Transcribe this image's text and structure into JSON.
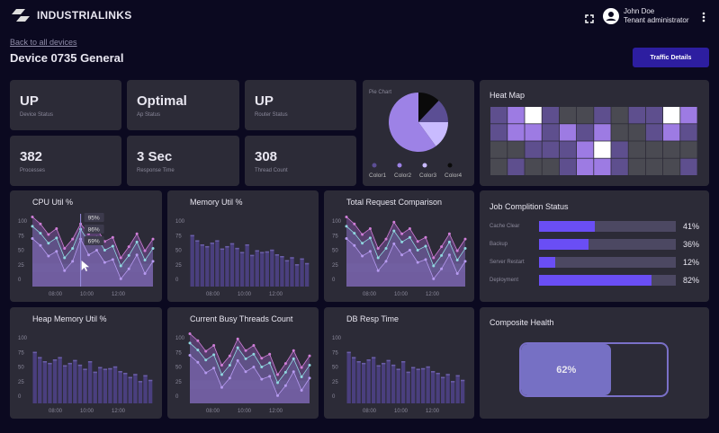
{
  "header": {
    "brand": "INDUSTRIALINKS",
    "user_name": "John Doe",
    "user_role": "Tenant administrator",
    "icons": [
      "fullscreen-icon",
      "account-circle-icon",
      "more-vert-icon"
    ]
  },
  "page": {
    "back_link": "Back to all devices",
    "title": "Device 0735 General",
    "traffic_button": "Traffic Details"
  },
  "stats": [
    {
      "value": "UP",
      "label": "Device Status"
    },
    {
      "value": "Optimal",
      "label": "Ap Status"
    },
    {
      "value": "UP",
      "label": "Router Status"
    },
    {
      "value": "382",
      "label": "Processes"
    },
    {
      "value": "3 Sec",
      "label": "Response Time"
    },
    {
      "value": "308",
      "label": "Thread Count"
    }
  ],
  "colors": {
    "accent": "#6a4ef5",
    "button": "#2d1ea0",
    "card": "#2c2b37",
    "background": "#0b0920"
  },
  "chart_data": [
    {
      "id": "pie",
      "type": "pie",
      "title": "Pie Chart",
      "labels": [
        "Color1",
        "Color2",
        "Color3",
        "Color4"
      ],
      "values": [
        13,
        60,
        15,
        12
      ],
      "colors": [
        "#5b4e94",
        "#9d82e6",
        "#c9bbff",
        "#0a0a0a"
      ]
    },
    {
      "id": "heat",
      "type": "heatmap",
      "title": "Heat Map",
      "values": [
        [
          1,
          2,
          3,
          1,
          0,
          0,
          1,
          0,
          1,
          1,
          3,
          2
        ],
        [
          1,
          2,
          2,
          1,
          2,
          1,
          2,
          0,
          0,
          1,
          2,
          1
        ],
        [
          0,
          0,
          1,
          1,
          1,
          2,
          3,
          1,
          0,
          0,
          0,
          0
        ],
        [
          0,
          1,
          0,
          0,
          1,
          2,
          2,
          1,
          0,
          0,
          0,
          1
        ]
      ],
      "colors": [
        "#4a4a52",
        "#5e4f8e",
        "#9d7be3",
        "#ffffff"
      ]
    },
    {
      "id": "cpu",
      "type": "area",
      "title": "CPU Util %",
      "ylim": [
        0,
        100
      ],
      "yticks": [
        0,
        25,
        50,
        75,
        100
      ],
      "xticks": [
        "08:00",
        "10:00",
        "12:00"
      ],
      "tooltip": [
        "95%",
        "86%",
        "69%"
      ],
      "tooltip_index": 6,
      "series": [
        {
          "values": [
            107,
            95,
            77,
            87,
            53,
            69,
            95,
            78,
            87,
            65,
            72,
            37,
            56,
            78,
            49,
            69
          ]
        },
        {
          "values": [
            91,
            79,
            62,
            71,
            37,
            53,
            86,
            64,
            72,
            50,
            57,
            23,
            41,
            64,
            33,
            53
          ]
        },
        {
          "values": [
            70,
            58,
            40,
            48,
            15,
            31,
            69,
            42,
            50,
            29,
            34,
            1,
            18,
            42,
            10,
            31
          ]
        }
      ]
    },
    {
      "id": "mem",
      "type": "bar",
      "title": "Memory Util %",
      "ylim": [
        0,
        100
      ],
      "yticks": [
        0,
        25,
        50,
        75,
        100
      ],
      "xticks": [
        "08:00",
        "10:00",
        "12:00"
      ],
      "values": [
        76,
        67,
        60,
        57,
        63,
        67,
        53,
        57,
        62,
        54,
        47,
        60,
        42,
        50,
        47,
        48,
        51,
        43,
        40,
        33,
        38,
        26,
        36,
        28
      ]
    },
    {
      "id": "req",
      "type": "area",
      "title": "Total Request Comparison",
      "ylim": [
        0,
        100
      ],
      "yticks": [
        0,
        25,
        50,
        75,
        100
      ],
      "xticks": [
        "08:00",
        "10:00",
        "12:00"
      ],
      "series": [
        {
          "values": [
            107,
            95,
            77,
            87,
            53,
            69,
            98,
            78,
            87,
            65,
            72,
            37,
            56,
            78,
            49,
            69
          ]
        },
        {
          "values": [
            91,
            79,
            62,
            71,
            37,
            53,
            83,
            64,
            72,
            50,
            57,
            23,
            41,
            64,
            33,
            53
          ]
        },
        {
          "values": [
            70,
            58,
            40,
            48,
            15,
            31,
            61,
            42,
            50,
            29,
            34,
            1,
            18,
            42,
            10,
            31
          ]
        }
      ]
    },
    {
      "id": "heap",
      "type": "bar",
      "title": "Heap Memory Util %",
      "ylim": [
        0,
        100
      ],
      "yticks": [
        0,
        25,
        50,
        75,
        100
      ],
      "xticks": [
        "08:00",
        "10:00",
        "12:00"
      ],
      "values": [
        76,
        67,
        60,
        57,
        63,
        67,
        53,
        57,
        62,
        54,
        47,
        60,
        42,
        50,
        47,
        48,
        51,
        43,
        40,
        33,
        38,
        26,
        36,
        28
      ]
    },
    {
      "id": "threads",
      "type": "area",
      "title": "Current Busy Threads Count",
      "ylim": [
        0,
        100
      ],
      "yticks": [
        0,
        25,
        50,
        75,
        100
      ],
      "xticks": [
        "08:00",
        "10:00",
        "12:00"
      ],
      "series": [
        {
          "values": [
            107,
            95,
            77,
            87,
            53,
            69,
            98,
            78,
            87,
            65,
            72,
            37,
            56,
            78,
            49,
            69
          ]
        },
        {
          "values": [
            91,
            79,
            62,
            71,
            37,
            53,
            83,
            64,
            72,
            50,
            57,
            23,
            41,
            64,
            33,
            53
          ]
        },
        {
          "values": [
            70,
            58,
            40,
            48,
            15,
            31,
            61,
            42,
            50,
            29,
            34,
            1,
            18,
            42,
            10,
            31
          ]
        }
      ]
    },
    {
      "id": "db",
      "type": "bar",
      "title": "DB Resp Time",
      "ylim": [
        0,
        100
      ],
      "yticks": [
        0,
        25,
        50,
        75,
        100
      ],
      "xticks": [
        "08:00",
        "10:00",
        "12:00"
      ],
      "values": [
        76,
        67,
        60,
        57,
        63,
        67,
        53,
        57,
        62,
        54,
        47,
        60,
        42,
        50,
        47,
        48,
        51,
        43,
        40,
        33,
        38,
        26,
        36,
        28
      ]
    }
  ],
  "jobs": {
    "title": "Job Complition Status",
    "items": [
      {
        "label": "Cache Clear",
        "value": 41,
        "text": "41%"
      },
      {
        "label": "Backup",
        "value": 36,
        "text": "36%"
      },
      {
        "label": "Server Restart",
        "value": 12,
        "text": "12%"
      },
      {
        "label": "Deployment",
        "value": 82,
        "text": "82%"
      }
    ]
  },
  "health": {
    "title": "Composite Health",
    "value": 62,
    "text": "62%"
  }
}
